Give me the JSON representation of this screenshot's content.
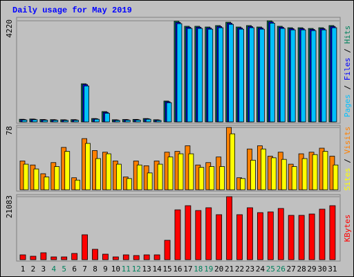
{
  "chart_data": [
    {
      "type": "bar",
      "title": "Daily usage for May 2019",
      "legend_separator": " / ",
      "ylim": [
        0,
        4220
      ],
      "yticks": [
        4220
      ],
      "series": [
        {
          "name": "Hits",
          "color": "#00805c",
          "values": [
            110,
            120,
            100,
            95,
            90,
            95,
            1590,
            140,
            430,
            90,
            100,
            105,
            140,
            90,
            870,
            4200,
            3990,
            3990,
            3960,
            4020,
            4160,
            3960,
            4020,
            3960,
            4220,
            3990,
            3930,
            3930,
            3900,
            3930,
            4020
          ]
        },
        {
          "name": "Files",
          "color": "#0000ff",
          "values": [
            100,
            110,
            90,
            85,
            80,
            85,
            1560,
            130,
            400,
            80,
            90,
            95,
            130,
            80,
            840,
            4150,
            3950,
            3950,
            3920,
            3980,
            4120,
            3920,
            3980,
            3920,
            4170,
            3950,
            3890,
            3890,
            3860,
            3890,
            3980
          ]
        },
        {
          "name": "Pages",
          "color": "#00c0ff",
          "values": [
            80,
            90,
            70,
            65,
            60,
            65,
            1500,
            110,
            360,
            60,
            70,
            75,
            110,
            60,
            800,
            4100,
            3900,
            3900,
            3870,
            3930,
            4070,
            3870,
            3930,
            3870,
            4120,
            3900,
            3840,
            3840,
            3810,
            3840,
            3930
          ]
        }
      ]
    },
    {
      "type": "bar",
      "ylim": [
        0,
        78
      ],
      "yticks": [
        78
      ],
      "series": [
        {
          "name": "Visits",
          "color": "#ff8000",
          "values": [
            36,
            31,
            20,
            34,
            53,
            15,
            64,
            49,
            47,
            36,
            16,
            36,
            30,
            36,
            47,
            48,
            55,
            31,
            34,
            41,
            78,
            15,
            51,
            55,
            42,
            47,
            32,
            45,
            47,
            52,
            42
          ]
        },
        {
          "name": "Sites",
          "color": "#ffff00",
          "values": [
            32,
            26,
            16,
            29,
            48,
            12,
            58,
            39,
            45,
            32,
            14,
            31,
            21,
            32,
            41,
            45,
            45,
            28,
            29,
            29,
            70,
            14,
            37,
            51,
            40,
            38,
            29,
            39,
            44,
            48,
            31
          ]
        }
      ]
    },
    {
      "type": "bar",
      "ylim": [
        0,
        21083
      ],
      "yticks": [
        21083
      ],
      "categories": [
        "1",
        "2",
        "3",
        "4",
        "5",
        "6",
        "7",
        "8",
        "9",
        "10",
        "11",
        "12",
        "13",
        "14",
        "15",
        "16",
        "17",
        "18",
        "19",
        "20",
        "21",
        "22",
        "23",
        "24",
        "25",
        "26",
        "27",
        "28",
        "29",
        "30",
        "31"
      ],
      "label_colors": [
        "#000000",
        "#000000",
        "#000000",
        "#00805c",
        "#00805c",
        "#000000",
        "#000000",
        "#000000",
        "#000000",
        "#000000",
        "#00805c",
        "#00805c",
        "#000000",
        "#000000",
        "#000000",
        "#000000",
        "#000000",
        "#00805c",
        "#00805c",
        "#000000",
        "#000000",
        "#000000",
        "#000000",
        "#000000",
        "#00805c",
        "#00805c",
        "#000000",
        "#000000",
        "#000000",
        "#000000",
        "#000000"
      ],
      "series": [
        {
          "name": "KBytes",
          "color": "#ff0000",
          "values": [
            1620,
            1160,
            2320,
            930,
            930,
            2090,
            8340,
            3480,
            1850,
            930,
            1620,
            1390,
            1620,
            1620,
            6490,
            16680,
            18070,
            16450,
            17380,
            15060,
            21083,
            15060,
            17380,
            15750,
            15990,
            17140,
            14830,
            14830,
            15290,
            16910,
            18070
          ]
        }
      ]
    }
  ]
}
